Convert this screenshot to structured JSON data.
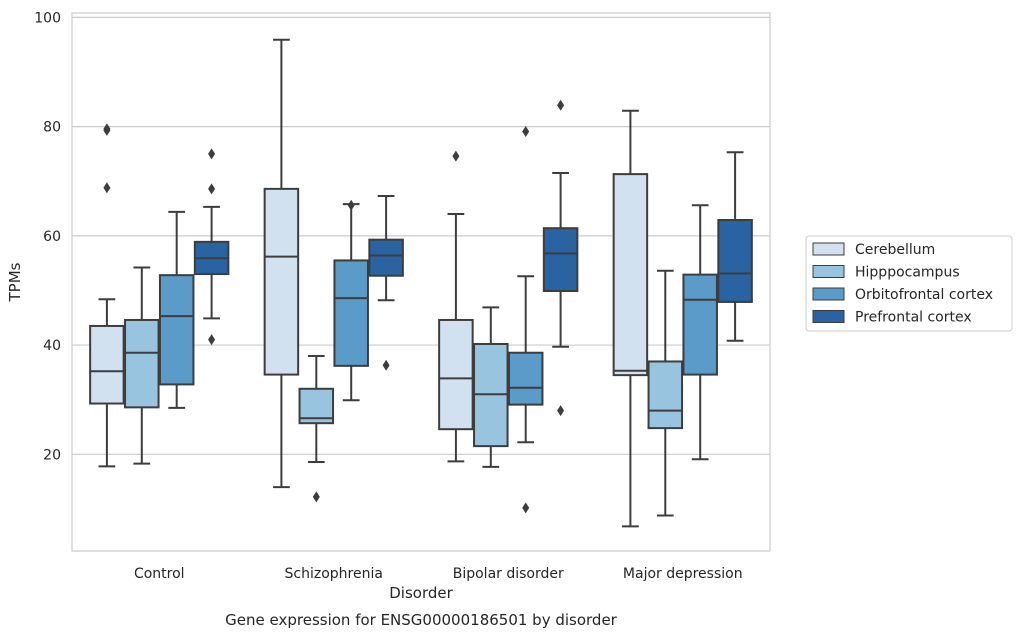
{
  "chart_data": {
    "type": "box",
    "caption": "Gene expression for ENSG00000186501 by disorder",
    "xlabel": "Disorder",
    "ylabel": "TPMs",
    "ylim": [
      2.3,
      100.8
    ],
    "yticks": [
      20,
      40,
      60,
      80,
      100
    ],
    "grid": "horizontal",
    "legend_position": "right",
    "categories": [
      "Control",
      "Schizophrenia",
      "Bipolar disorder",
      "Major depression"
    ],
    "series": [
      {
        "name": "Cerebellum",
        "color": "#d1e1f0",
        "boxes": [
          {
            "whisker_low": 17.8,
            "q1": 29.3,
            "median": 35.2,
            "q3": 43.5,
            "whisker_high": 48.4,
            "outliers": [
              68.8,
              79.3,
              79.6
            ]
          },
          {
            "whisker_low": 14.0,
            "q1": 34.6,
            "median": 56.2,
            "q3": 68.6,
            "whisker_high": 95.9,
            "outliers": []
          },
          {
            "whisker_low": 18.7,
            "q1": 24.6,
            "median": 33.9,
            "q3": 44.6,
            "whisker_high": 64.0,
            "outliers": [
              74.6
            ]
          },
          {
            "whisker_low": 6.8,
            "q1": 34.5,
            "median": 35.3,
            "q3": 71.3,
            "whisker_high": 82.9,
            "outliers": []
          }
        ]
      },
      {
        "name": "Hipppocampus",
        "color": "#99c4df",
        "boxes": [
          {
            "whisker_low": 18.3,
            "q1": 28.6,
            "median": 38.6,
            "q3": 44.6,
            "whisker_high": 54.2,
            "outliers": []
          },
          {
            "whisker_low": 18.6,
            "q1": 25.7,
            "median": 26.6,
            "q3": 32.0,
            "whisker_high": 38.0,
            "outliers": [
              12.2
            ]
          },
          {
            "whisker_low": 17.7,
            "q1": 21.5,
            "median": 31.0,
            "q3": 40.2,
            "whisker_high": 46.9,
            "outliers": []
          },
          {
            "whisker_low": 8.8,
            "q1": 24.8,
            "median": 28.0,
            "q3": 37.0,
            "whisker_high": 53.6,
            "outliers": []
          }
        ]
      },
      {
        "name": "Orbitofrontal cortex",
        "color": "#5a9bc9",
        "boxes": [
          {
            "whisker_low": 28.5,
            "q1": 32.8,
            "median": 45.3,
            "q3": 52.8,
            "whisker_high": 64.4,
            "outliers": []
          },
          {
            "whisker_low": 29.9,
            "q1": 36.2,
            "median": 48.6,
            "q3": 55.5,
            "whisker_high": 65.8,
            "outliers": [
              65.6
            ]
          },
          {
            "whisker_low": 22.2,
            "q1": 29.1,
            "median": 32.2,
            "q3": 38.6,
            "whisker_high": 52.6,
            "outliers": [
              79.1,
              10.2
            ]
          },
          {
            "whisker_low": 19.1,
            "q1": 34.6,
            "median": 48.3,
            "q3": 52.9,
            "whisker_high": 65.6,
            "outliers": []
          }
        ]
      },
      {
        "name": "Prefrontal cortex",
        "color": "#2a63a1",
        "boxes": [
          {
            "whisker_low": 44.9,
            "q1": 53.0,
            "median": 55.9,
            "q3": 58.9,
            "whisker_high": 65.3,
            "outliers": [
              68.6,
              75.0,
              41.0
            ]
          },
          {
            "whisker_low": 48.2,
            "q1": 52.7,
            "median": 56.4,
            "q3": 59.3,
            "whisker_high": 67.3,
            "outliers": [
              36.3
            ]
          },
          {
            "whisker_low": 39.7,
            "q1": 49.9,
            "median": 56.8,
            "q3": 61.4,
            "whisker_high": 71.5,
            "outliers": [
              83.9,
              28.0
            ]
          },
          {
            "whisker_low": 40.8,
            "q1": 47.9,
            "median": 53.1,
            "q3": 62.9,
            "whisker_high": 75.3,
            "outliers": []
          }
        ]
      }
    ]
  }
}
